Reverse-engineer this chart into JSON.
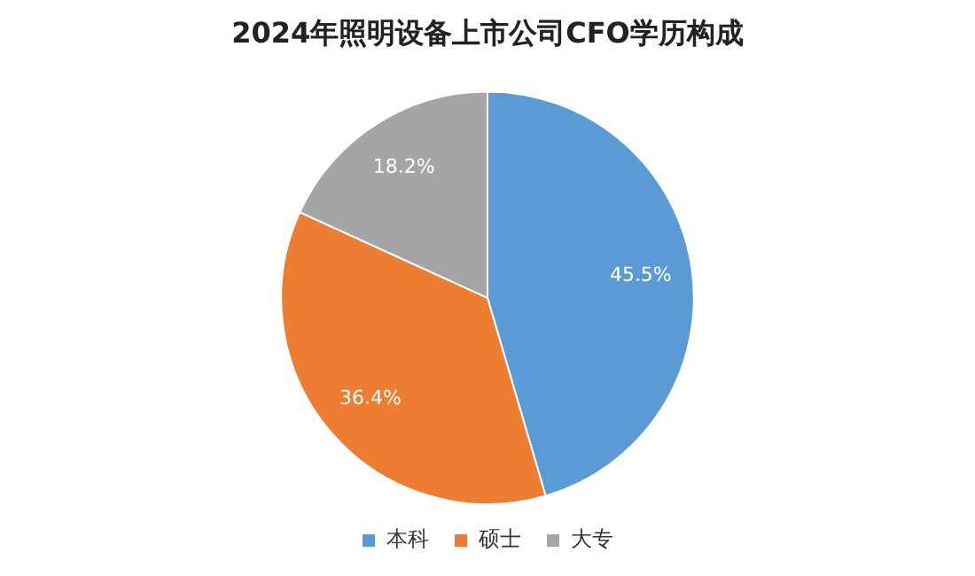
{
  "chart_data": {
    "type": "pie",
    "title": "2024年照明设备上市公司CFO学历构成",
    "categories": [
      "本科",
      "硕士",
      "大专"
    ],
    "values": [
      45.5,
      36.4,
      18.2
    ],
    "colors": [
      "#5b9bd5",
      "#ed7d31",
      "#a5a5a5"
    ],
    "value_labels": [
      "45.5%",
      "36.4%",
      "18.2%"
    ],
    "legend": "bottom"
  }
}
